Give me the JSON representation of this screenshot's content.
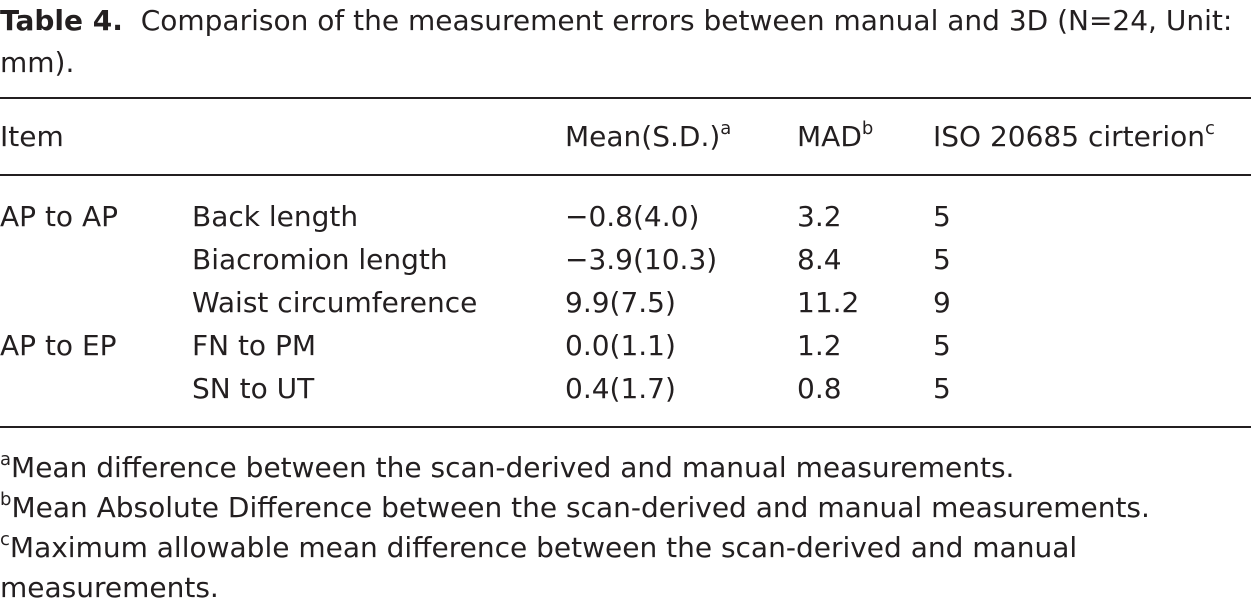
{
  "caption": {
    "label": "Table 4.",
    "text": "Comparison of the measurement errors between manual and 3D (N=24, Unit: mm)."
  },
  "table": {
    "header": [
      {
        "text": "Item"
      },
      {
        "text": "Mean(S.D.)",
        "note": "a"
      },
      {
        "text": "MAD",
        "note": "b"
      },
      {
        "text": "ISO 20685 cirterion",
        "note": "c"
      }
    ],
    "groups": [
      {
        "label": "AP to AP",
        "rows": [
          [
            "Back length",
            "−0.8(4.0)",
            "3.2",
            "5"
          ],
          [
            "Biacromion length",
            "−3.9(10.3)",
            "8.4",
            "5"
          ],
          [
            "Waist circumference",
            "9.9(7.5)",
            "11.2",
            "9"
          ]
        ]
      },
      {
        "label": "AP to EP",
        "rows": [
          [
            "FN to PM",
            "0.0(1.1)",
            "1.2",
            "5"
          ],
          [
            "SN to UT",
            "0.4(1.7)",
            "0.8",
            "5"
          ]
        ]
      }
    ]
  },
  "footnotes": [
    {
      "mark": "a",
      "text": "Mean difference between the scan-derived and manual measurements."
    },
    {
      "mark": "b",
      "text": "Mean Absolute Difference between the scan-derived and manual measurements."
    },
    {
      "mark": "c",
      "text": "Maximum allowable mean difference between the scan-derived and manual measurements."
    }
  ]
}
